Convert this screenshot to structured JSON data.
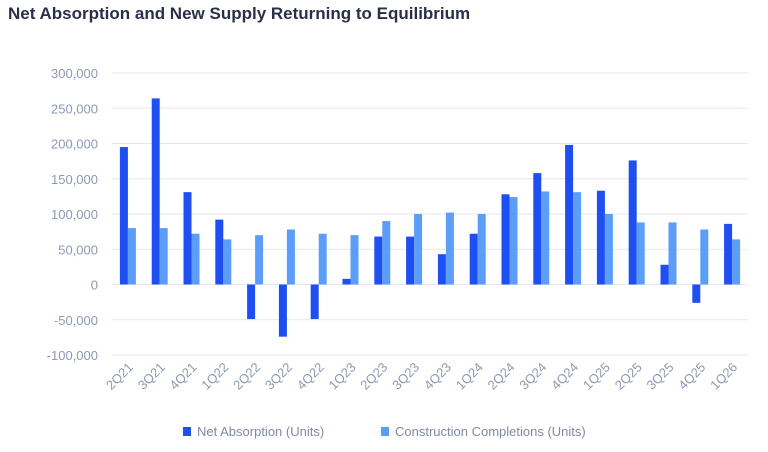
{
  "title": "Net Absorption and New Supply Returning to Equilibrium",
  "colors": {
    "net_absorption": "#1f4ff0",
    "construction_completions": "#5b9df8",
    "grid": "#e3e7ef",
    "tick_text": "#8d9ab3"
  },
  "chart_data": {
    "type": "bar",
    "title": "Net Absorption and New Supply Returning to Equilibrium",
    "xlabel": "",
    "ylabel": "",
    "ylim": [
      -100000,
      300000
    ],
    "yticks": [
      300000,
      250000,
      200000,
      150000,
      100000,
      50000,
      0,
      -50000,
      -100000
    ],
    "ytick_labels": [
      "300,000",
      "250,000",
      "200,000",
      "150,000",
      "100,000",
      "50,000",
      "0",
      "-50,000",
      "-100,000"
    ],
    "grid": true,
    "legend_position": "bottom",
    "categories": [
      "2Q21",
      "3Q21",
      "4Q21",
      "1Q22",
      "2Q22",
      "3Q22",
      "4Q22",
      "1Q23",
      "2Q23",
      "3Q23",
      "4Q23",
      "1Q24",
      "2Q24",
      "3Q24",
      "4Q24",
      "1Q25",
      "2Q25",
      "3Q25",
      "4Q25",
      "1Q26"
    ],
    "series": [
      {
        "name": "Net Absorption (Units)",
        "values": [
          195000,
          264000,
          131000,
          92000,
          -49000,
          -74000,
          -49000,
          8000,
          68000,
          68000,
          43000,
          72000,
          128000,
          158000,
          198000,
          133000,
          176000,
          28000,
          -26000,
          86000
        ]
      },
      {
        "name": "Construction Completions (Units)",
        "values": [
          80000,
          80000,
          72000,
          64000,
          70000,
          78000,
          72000,
          70000,
          90000,
          100000,
          102000,
          100000,
          124000,
          132000,
          131000,
          100000,
          88000,
          88000,
          78000,
          64000
        ]
      }
    ]
  }
}
